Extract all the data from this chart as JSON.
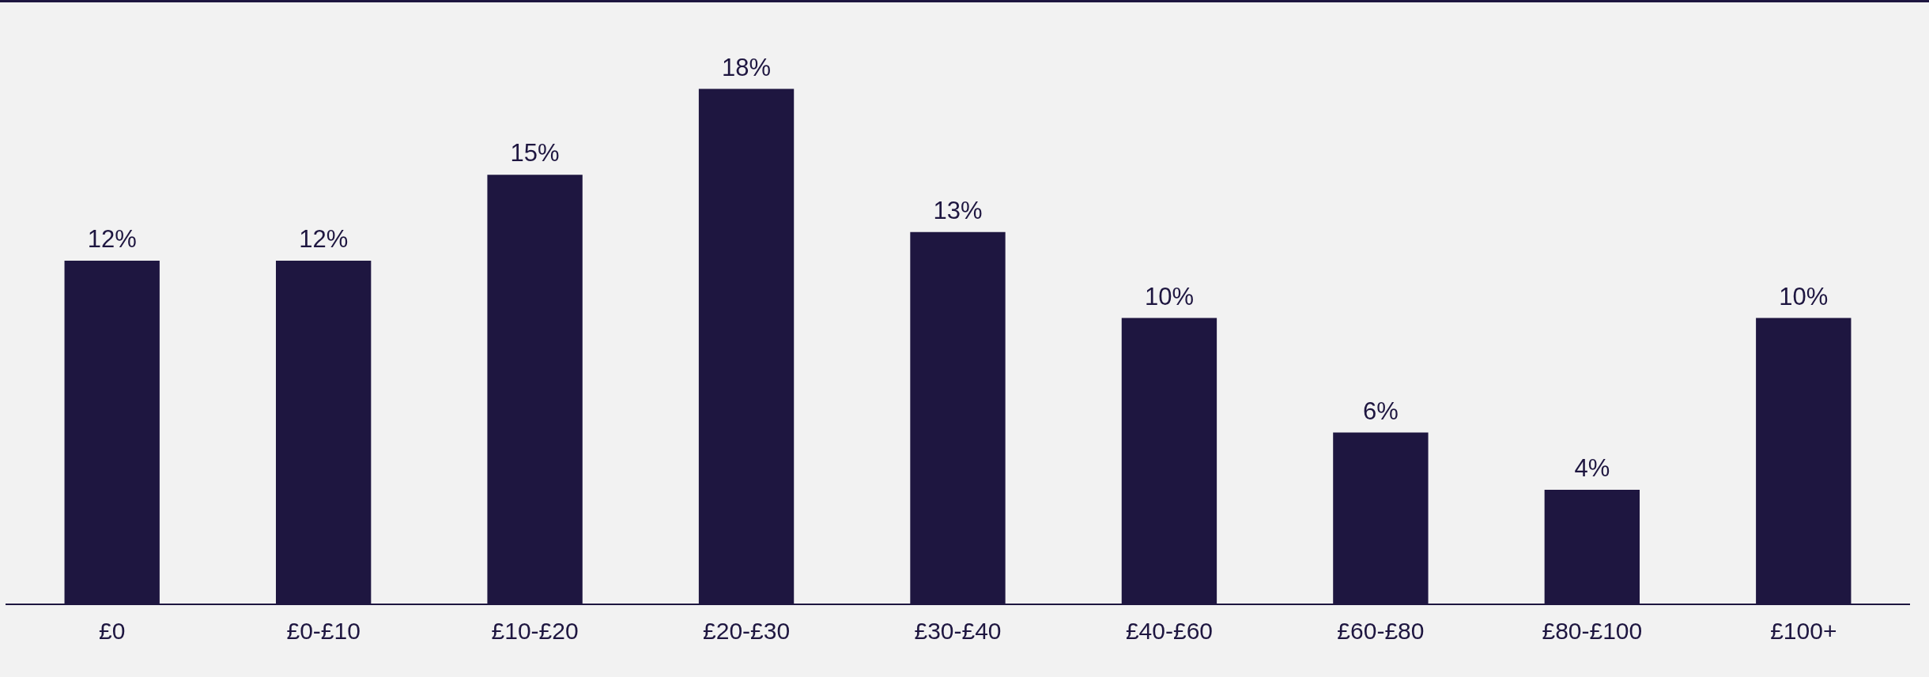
{
  "chart_data": {
    "type": "bar",
    "categories": [
      "£0",
      "£0-£10",
      "£10-£20",
      "£20-£30",
      "£30-£40",
      "£40-£60",
      "£60-£80",
      "£80-£100",
      "£100+"
    ],
    "values": [
      12,
      12,
      15,
      18,
      13,
      10,
      6,
      4,
      10
    ],
    "value_labels": [
      "12%",
      "12%",
      "15%",
      "18%",
      "13%",
      "10%",
      "6%",
      "4%",
      "10%"
    ],
    "color": "#1e1640",
    "tick_labels": "x",
    "grid": false,
    "legend": false
  }
}
